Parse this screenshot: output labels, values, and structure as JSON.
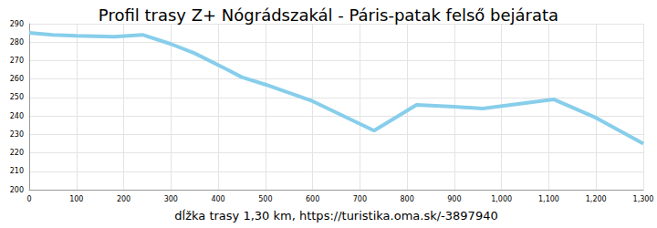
{
  "chart_data": {
    "type": "line",
    "title": "Profil trasy Z+ Nógrádszakál - Páris-patak felső bejárata",
    "x_label": "dĺžka trasy 1,30 km, https://turistika.oma.sk/-3897940",
    "x": [
      0,
      50,
      100,
      180,
      240,
      300,
      350,
      420,
      450,
      500,
      600,
      730,
      820,
      900,
      960,
      1110,
      1200,
      1300
    ],
    "values": [
      285,
      284,
      283.5,
      283,
      284,
      279,
      274,
      265,
      261,
      257,
      248,
      232,
      246,
      245,
      244,
      249,
      239,
      225
    ],
    "color": "#87ceeb",
    "xlim": [
      0,
      1300
    ],
    "xticks": [
      0,
      100,
      200,
      300,
      400,
      500,
      600,
      700,
      800,
      900,
      1000,
      1100,
      1200,
      1300
    ],
    "ylim": [
      200,
      290
    ],
    "yticks": [
      200,
      210,
      220,
      230,
      240,
      250,
      260,
      270,
      280,
      290
    ],
    "grid": true
  }
}
